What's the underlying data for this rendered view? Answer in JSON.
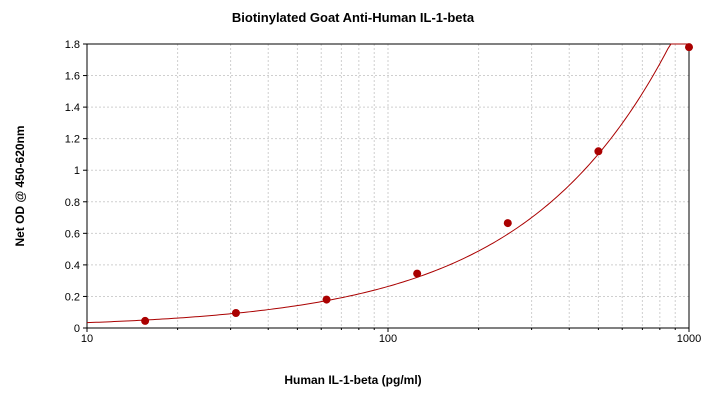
{
  "chart_data": {
    "type": "scatter",
    "title": "Biotinylated Goat Anti-Human IL-1-beta",
    "xlabel": "Human IL-1-beta (pg/ml)",
    "ylabel": "Net OD @ 450-620nm",
    "x_scale": "log",
    "xlim": [
      10,
      1000
    ],
    "ylim": [
      0,
      1.8
    ],
    "x_ticks": [
      "10",
      "100",
      "1000"
    ],
    "y_ticks": [
      "0",
      "0.2",
      "0.4",
      "0.6",
      "0.8",
      "1",
      "1.2",
      "1.4",
      "1.6",
      "1.8"
    ],
    "grid": true,
    "series": [
      {
        "points": [
          {
            "x": 15.6,
            "y": 0.045
          },
          {
            "x": 31.25,
            "y": 0.095
          },
          {
            "x": 62.5,
            "y": 0.18
          },
          {
            "x": 125,
            "y": 0.345
          },
          {
            "x": 250,
            "y": 0.665
          },
          {
            "x": 500,
            "y": 1.12
          },
          {
            "x": 1000,
            "y": 1.78
          }
        ],
        "fit_curve": "smooth curve through points",
        "color": "#aa0000"
      }
    ]
  }
}
